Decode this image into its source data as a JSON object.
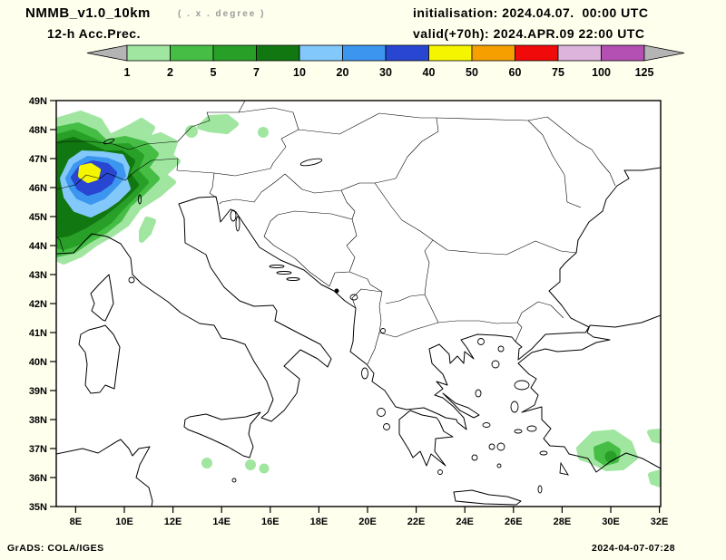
{
  "header": {
    "model": "NMMB_v1.0_10km",
    "resolution_note": "( . x . degree )",
    "product": "12-h Acc.Prec.",
    "initialisation": "initialisation: 2024.04.07.  00:00 UTC",
    "valid": "valid(+70h): 2024.APR.09 22:00 UTC"
  },
  "colorbar": {
    "levels": [
      "1",
      "2",
      "5",
      "7",
      "10",
      "20",
      "30",
      "40",
      "50",
      "60",
      "75",
      "100",
      "125"
    ],
    "colors": [
      "#a0e6a0",
      "#46be46",
      "#28a028",
      "#117711",
      "#82c8fa",
      "#3c96f0",
      "#2846d2",
      "#f5f500",
      "#f5a000",
      "#f00a0a",
      "#dcb4dc",
      "#b450b4"
    ],
    "arrow_color": "#b4b4b4"
  },
  "map": {
    "lat_ticks": [
      "49N",
      "48N",
      "47N",
      "46N",
      "45N",
      "44N",
      "43N",
      "42N",
      "41N",
      "40N",
      "39N",
      "38N",
      "37N",
      "36N",
      "35N"
    ],
    "lon_ticks": [
      "8E",
      "10E",
      "12E",
      "14E",
      "16E",
      "18E",
      "20E",
      "22E",
      "24E",
      "26E",
      "28E",
      "30E",
      "32E"
    ]
  },
  "footer": {
    "left": "GrADS: COLA/IGES",
    "right": "2024-04-07-07:28"
  },
  "colors": {
    "background": "#ffffee",
    "map_background": "#ffffff",
    "coastline": "#000000"
  }
}
